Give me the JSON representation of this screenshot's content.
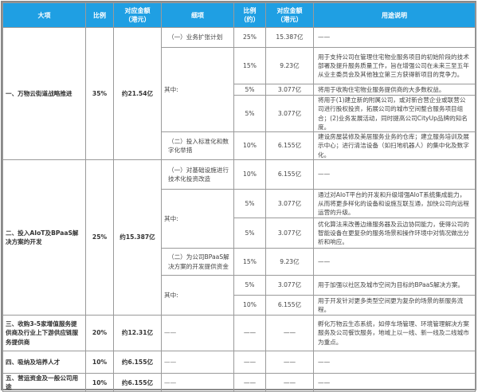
{
  "header": {
    "major_item": "大项",
    "ratio": "比例",
    "amount": "对应金额\n（港元）",
    "sub_item": "细项",
    "sub_ratio": "比例\n（约）",
    "sub_amount": "对应金额\n（港元）",
    "usage": "用途说明"
  },
  "accent_color": "#1f9fe3",
  "groups": [
    {
      "name": "一、万物云街道战略推进",
      "ratio": "35%",
      "amount": "约21.54亿",
      "rows": [
        {
          "sub": "（一）业务扩张计划",
          "ratio": "25%",
          "amount": "15.387亿",
          "desc": "——"
        },
        {
          "sub": "其中:",
          "ratio": "15%",
          "amount": "9.23亿",
          "desc": "用于支持公司在管理住宅物业服务项目的初始阶段的技术部署及提升服务质量工作，旨在增强公司在未来三至五年从业主委员会及其他独立第三方获得新项目的竞争力。"
        },
        {
          "ratio": "5%",
          "amount": "3.077亿",
          "desc": "将用于收购住宅物业服务提供商的大多数权益。"
        },
        {
          "ratio": "5%",
          "amount": "3.077亿",
          "desc": "将用于(1)建立新的附属公司，或对新合营企业或联营公司进行股权投资，拓展公司的城市空间整合服务项目组合；(2)业务发展活动，同时提高公司CityUp品牌的知名度。"
        },
        {
          "sub": "（二）投入标准化和数字化举措",
          "ratio": "10%",
          "amount": "6.155亿",
          "desc": "建设房屋装修及美居服务业务的仓库；建立服务培训及展示中心；进行清洁设备（如扫地机器人）的集中化及数字化。"
        }
      ]
    },
    {
      "name": "二、投入AIoT及BPaaS解决方案的开发",
      "ratio": "25%",
      "amount": "约15.387亿",
      "rows": [
        {
          "sub": "（一）对基础设施进行技术化投资改造",
          "ratio": "10%",
          "amount": "6.155亿",
          "desc": "——"
        },
        {
          "sub": "其中:",
          "ratio": "5%",
          "amount": "3.077亿",
          "desc": "通过对AIoT平台的开发和升级增强AIoT系统集成能力，从而将更多样化的设备和设施互联互通，加快公司向远程运营的升级。"
        },
        {
          "ratio": "5%",
          "amount": "3.077亿",
          "desc": "优化算法来改善边缘服务器及云边协同能力，使得公司的智能设备在更复杂的服务场景和操作环境中对情况做出分析和响应。"
        },
        {
          "sub": "（二）为公司BPaaS解决方案的开发提供资金",
          "ratio": "15%",
          "amount": "9.23亿",
          "desc": "——"
        },
        {
          "sub": "其中:",
          "ratio": "5%",
          "amount": "3.077亿",
          "desc": "用于加强以社区及城市空间为目标的BPaaS解决方案。"
        },
        {
          "ratio": "10%",
          "amount": "6.155亿",
          "desc": "用于开发针对更多类型空间更为复杂的场景的新服务流程。"
        }
      ]
    },
    {
      "name": "三、收购3-5家增值服务提供商及行业上下游供应链服务提供商",
      "ratio": "20%",
      "amount": "约12.31亿",
      "rows": [
        {
          "sub": "——",
          "ratio": "——",
          "amount": "——",
          "desc": "孵化万物云生态系统，如停车场管理、环境管理解决方案服务及公司餐饮服务，地域上以一线、新一线及二线城市为重点。"
        }
      ]
    },
    {
      "name": "四、吸纳及培养人才",
      "ratio": "10%",
      "amount": "约6.155亿",
      "rows": [
        {
          "sub": "——",
          "ratio": "——",
          "amount": "——",
          "desc": "——"
        }
      ]
    },
    {
      "name": "五、营运资金及一般公司用途",
      "ratio": "10%",
      "amount": "约6.155亿",
      "rows": [
        {
          "sub": "——",
          "ratio": "——",
          "amount": "——",
          "desc": "——"
        }
      ]
    }
  ]
}
